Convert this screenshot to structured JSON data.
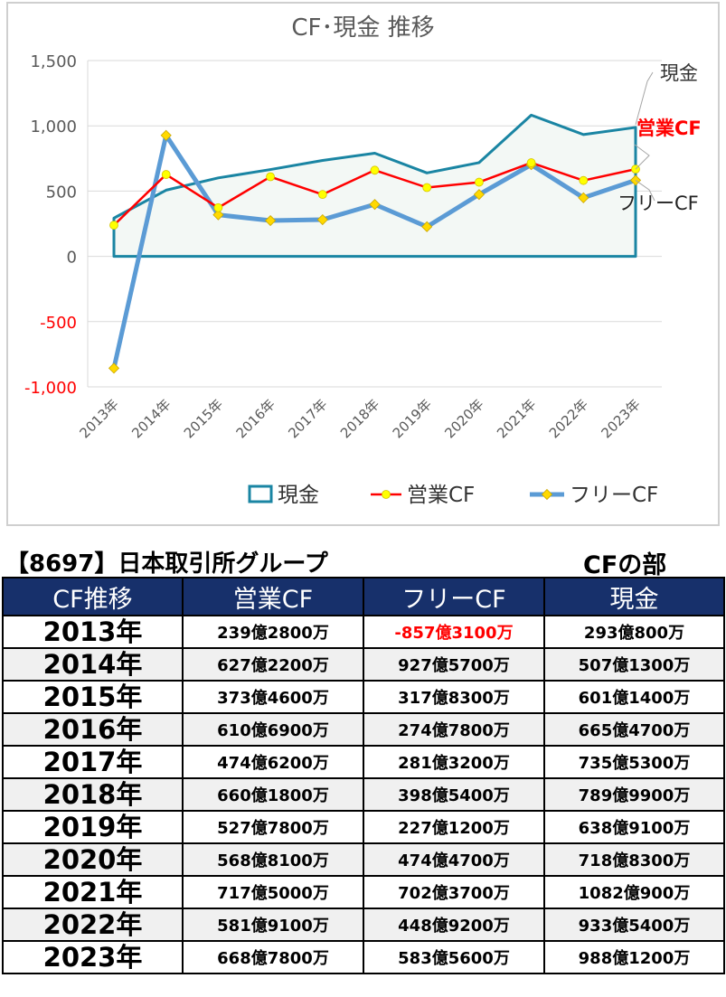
{
  "chart_data": {
    "type": "line",
    "title": "CF･現金 推移",
    "categories": [
      "2013年",
      "2014年",
      "2015年",
      "2016年",
      "2017年",
      "2018年",
      "2019年",
      "2020年",
      "2021年",
      "2022年",
      "2023年"
    ],
    "ylim": [
      -1000,
      1500
    ],
    "yticks": [
      1500,
      1000,
      500,
      0,
      -500,
      -1000
    ],
    "ytick_labels": [
      "1,500",
      "1,000",
      "500",
      "0",
      "-500",
      "-1,000"
    ],
    "series": [
      {
        "name": "現金",
        "kind": "area",
        "color": "#1a85a3",
        "values": [
          293,
          507,
          601,
          665,
          735,
          790,
          639,
          718,
          1082,
          933,
          988
        ]
      },
      {
        "name": "営業CF",
        "kind": "line",
        "color": "#ff0000",
        "values": [
          239,
          627,
          373,
          610,
          474,
          660,
          527,
          568,
          717,
          581,
          668
        ]
      },
      {
        "name": "フリーCF",
        "kind": "line",
        "color": "#5b9bd5",
        "values": [
          -857,
          927,
          318,
          274,
          281,
          398,
          227,
          474,
          702,
          449,
          583
        ]
      }
    ],
    "legend": "bottom",
    "end_labels": [
      "現金",
      "営業CF",
      "フリーCF"
    ]
  },
  "company_title": "【8697】日本取引所グループ",
  "section_title": "CFの部",
  "table": {
    "headers": [
      "CF推移",
      "営業CF",
      "フリーCF",
      "現金"
    ],
    "rows": [
      [
        "2013年",
        "239億2800万",
        "-857億3100万",
        "293億800万"
      ],
      [
        "2014年",
        "627億2200万",
        "927億5700万",
        "507億1300万"
      ],
      [
        "2015年",
        "373億4600万",
        "317億8300万",
        "601億1400万"
      ],
      [
        "2016年",
        "610億6900万",
        "274億7800万",
        "665億4700万"
      ],
      [
        "2017年",
        "474億6200万",
        "281億3200万",
        "735億5300万"
      ],
      [
        "2018年",
        "660億1800万",
        "398億5400万",
        "789億9900万"
      ],
      [
        "2019年",
        "527億7800万",
        "227億1200万",
        "638億9100万"
      ],
      [
        "2020年",
        "568億8100万",
        "474億4700万",
        "718億8300万"
      ],
      [
        "2021年",
        "717億5000万",
        "702億3700万",
        "1082億900万"
      ],
      [
        "2022年",
        "581億9100万",
        "448億9200万",
        "933億5400万"
      ],
      [
        "2023年",
        "668億7800万",
        "583億5600万",
        "988億1200万"
      ]
    ]
  }
}
